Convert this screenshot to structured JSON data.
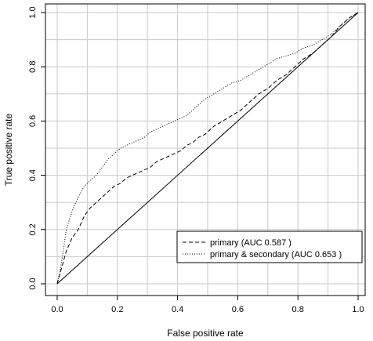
{
  "chart_data": {
    "type": "line",
    "title": "",
    "xlabel": "False positive rate",
    "ylabel": "True positive rate",
    "xlim": [
      0,
      1
    ],
    "ylim": [
      0,
      1
    ],
    "x_ticks": [
      "0.0",
      "0.2",
      "0.4",
      "0.6",
      "0.8",
      "1.0"
    ],
    "y_ticks": [
      "0.0",
      "0.2",
      "0.4",
      "0.6",
      "0.8",
      "1.0"
    ],
    "grid": true,
    "legend_position": "bottom-right",
    "diagonal_reference": true,
    "series": [
      {
        "name": "primary (AUC 0.587 )",
        "line_style": "dashed",
        "color": "#000000",
        "x": [
          0,
          0.01,
          0.02,
          0.03,
          0.05,
          0.07,
          0.09,
          0.11,
          0.13,
          0.15,
          0.17,
          0.19,
          0.21,
          0.23,
          0.25,
          0.27,
          0.29,
          0.31,
          0.33,
          0.35,
          0.37,
          0.39,
          0.41,
          0.43,
          0.45,
          0.47,
          0.49,
          0.52,
          0.55,
          0.58,
          0.61,
          0.64,
          0.67,
          0.7,
          0.73,
          0.76,
          0.79,
          0.82,
          0.85,
          0.88,
          0.91,
          0.94,
          0.97,
          1.0
        ],
        "y": [
          0,
          0.04,
          0.08,
          0.12,
          0.17,
          0.2,
          0.25,
          0.28,
          0.3,
          0.32,
          0.34,
          0.36,
          0.37,
          0.39,
          0.4,
          0.41,
          0.42,
          0.43,
          0.45,
          0.46,
          0.47,
          0.48,
          0.49,
          0.51,
          0.52,
          0.54,
          0.55,
          0.58,
          0.6,
          0.62,
          0.64,
          0.67,
          0.7,
          0.72,
          0.75,
          0.77,
          0.8,
          0.83,
          0.85,
          0.88,
          0.91,
          0.95,
          0.98,
          1.0
        ]
      },
      {
        "name": "primary & secondary (AUC 0.653 )",
        "line_style": "dotted",
        "color": "#000000",
        "x": [
          0,
          0.01,
          0.02,
          0.03,
          0.05,
          0.07,
          0.09,
          0.11,
          0.13,
          0.15,
          0.17,
          0.19,
          0.21,
          0.23,
          0.25,
          0.27,
          0.29,
          0.31,
          0.33,
          0.35,
          0.37,
          0.39,
          0.41,
          0.43,
          0.45,
          0.47,
          0.49,
          0.52,
          0.55,
          0.58,
          0.61,
          0.64,
          0.67,
          0.7,
          0.73,
          0.76,
          0.79,
          0.82,
          0.85,
          0.88,
          0.91,
          0.94,
          0.97,
          1.0
        ],
        "y": [
          0,
          0.05,
          0.12,
          0.2,
          0.27,
          0.32,
          0.36,
          0.38,
          0.4,
          0.43,
          0.46,
          0.48,
          0.5,
          0.51,
          0.52,
          0.53,
          0.54,
          0.56,
          0.57,
          0.58,
          0.59,
          0.6,
          0.61,
          0.62,
          0.64,
          0.66,
          0.68,
          0.7,
          0.72,
          0.74,
          0.75,
          0.77,
          0.79,
          0.81,
          0.83,
          0.84,
          0.85,
          0.87,
          0.88,
          0.9,
          0.92,
          0.95,
          0.98,
          1.0
        ]
      }
    ]
  }
}
